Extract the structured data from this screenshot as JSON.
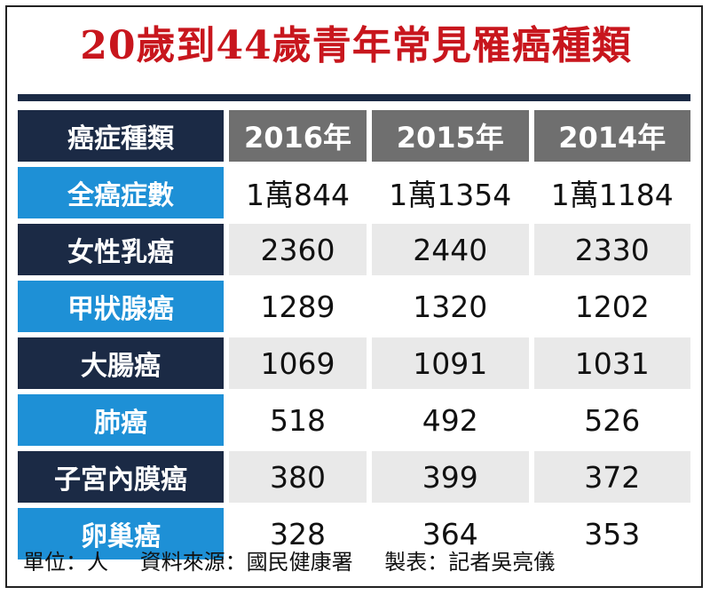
{
  "title": "20歲到44歲青年常見罹癌種類",
  "chart_data": {
    "type": "table",
    "title": "20歲到44歲青年常見罹癌種類",
    "header_label": "癌症種類",
    "columns": [
      "2016年",
      "2015年",
      "2014年"
    ],
    "rows": [
      {
        "label": "全癌症數",
        "values": [
          "1萬844",
          "1萬1354",
          "1萬1184"
        ]
      },
      {
        "label": "女性乳癌",
        "values": [
          "2360",
          "2440",
          "2330"
        ]
      },
      {
        "label": "甲狀腺癌",
        "values": [
          "1289",
          "1320",
          "1202"
        ]
      },
      {
        "label": "大腸癌",
        "values": [
          "1069",
          "1091",
          "1031"
        ]
      },
      {
        "label": "肺癌",
        "values": [
          "518",
          "492",
          "526"
        ]
      },
      {
        "label": "子宮內膜癌",
        "values": [
          "380",
          "399",
          "372"
        ]
      },
      {
        "label": "卵巢癌",
        "values": [
          "328",
          "364",
          "353"
        ]
      }
    ]
  },
  "footer": {
    "unit": "單位：人",
    "source": "資料來源：國民健康署",
    "maker": "製表：記者吳亮儀"
  },
  "colors": {
    "title": "#c8161d",
    "navy": "#1b2a45",
    "blue": "#1e90d6",
    "header_grey": "#6f6f6f",
    "row_grey": "#e9e9e9"
  }
}
